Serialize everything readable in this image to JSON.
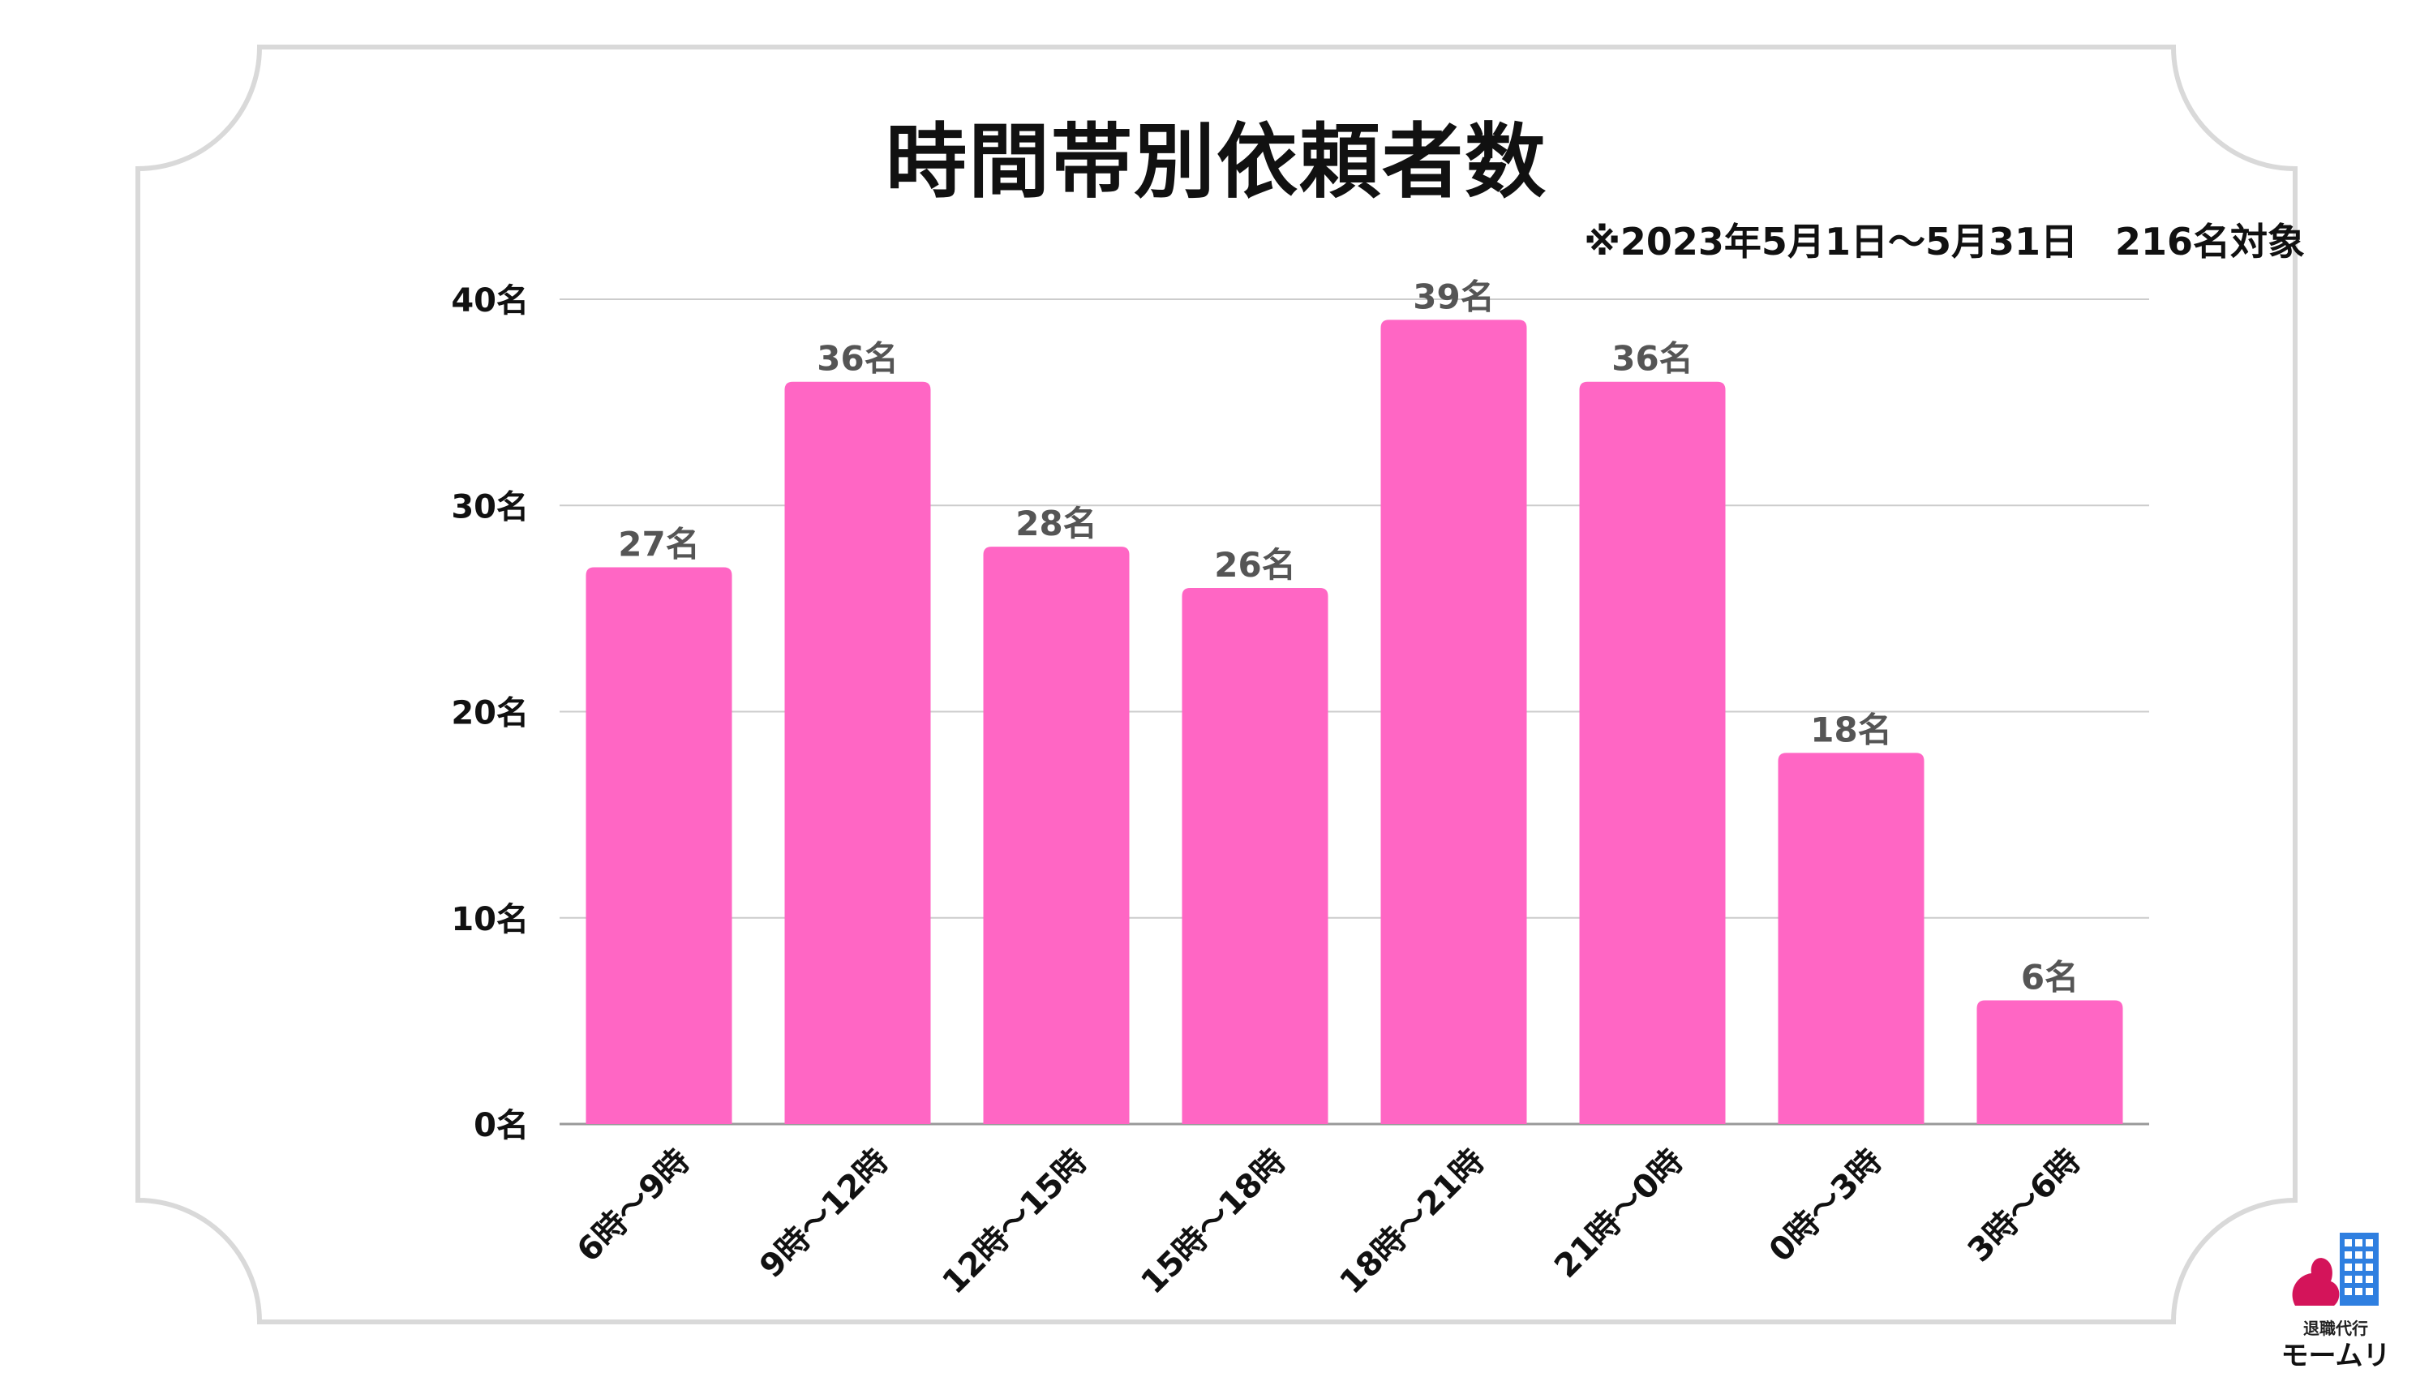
{
  "title": "時間帯別依頼者数",
  "note": "※2023年5月1日〜5月31日　216名対象",
  "brand": {
    "small": "退職代行",
    "name": "モームリ"
  },
  "colors": {
    "bar": "#ff66c4",
    "grid": "#cccccc",
    "frame": "#d9d9d9",
    "label": "#555555"
  },
  "chart_data": {
    "type": "bar",
    "categories": [
      "6時〜9時",
      "9時〜12時",
      "12時〜15時",
      "15時〜18時",
      "18時〜21時",
      "21時〜0時",
      "0時〜3時",
      "3時〜6時"
    ],
    "values": [
      27,
      36,
      28,
      26,
      39,
      36,
      18,
      6
    ],
    "data_labels": [
      "27名",
      "36名",
      "28名",
      "26名",
      "39名",
      "36名",
      "18名",
      "6名"
    ],
    "yticks": [
      "0名",
      "10名",
      "20名",
      "30名",
      "40名"
    ],
    "ylim": [
      0,
      40
    ],
    "grid": true
  }
}
